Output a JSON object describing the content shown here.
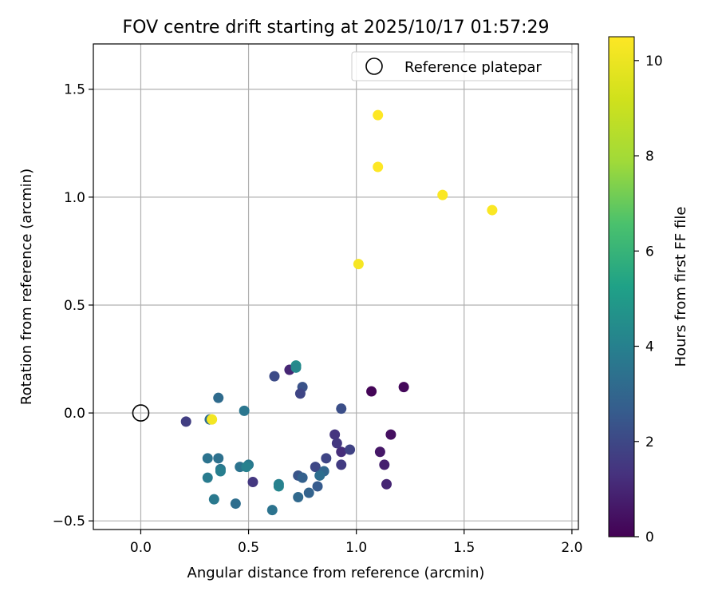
{
  "chart_data": {
    "type": "scatter",
    "title": "FOV centre drift starting at 2025/10/17 01:57:29",
    "xlabel": "Angular distance from reference (arcmin)",
    "ylabel": "Rotation from reference (arcmin)",
    "xlim": [
      -0.22,
      2.03
    ],
    "ylim": [
      -0.54,
      1.71
    ],
    "xticks": [
      0.0,
      0.5,
      1.0,
      1.5,
      2.0
    ],
    "xtick_labels": [
      "0.0",
      "0.5",
      "1.0",
      "1.5",
      "2.0"
    ],
    "yticks": [
      -0.5,
      0.0,
      0.5,
      1.0,
      1.5
    ],
    "ytick_labels": [
      "−0.5",
      "0.0",
      "0.5",
      "1.0",
      "1.5"
    ],
    "grid": true,
    "legend": {
      "position": "top-right",
      "entries": [
        "Reference platepar"
      ]
    },
    "colorbar": {
      "label": "Hours from first FF file",
      "range": [
        0,
        10.5
      ],
      "ticks": [
        0,
        2,
        4,
        6,
        8,
        10
      ],
      "tick_labels": [
        "0",
        "2",
        "4",
        "6",
        "8",
        "10"
      ],
      "colormap": "viridis"
    },
    "reference_point": {
      "x": 0.0,
      "y": 0.0,
      "label": "Reference platepar"
    },
    "series": [
      {
        "name": "FOV centre drift",
        "x": [
          1.07,
          1.22,
          1.16,
          1.11,
          1.13,
          1.14,
          0.93,
          0.9,
          0.91,
          0.93,
          0.69,
          0.97,
          0.86,
          0.93,
          0.81,
          0.75,
          0.52,
          0.21,
          0.74,
          0.73,
          0.62,
          0.82,
          0.85,
          0.78,
          0.73,
          0.75,
          0.83,
          0.72,
          0.36,
          0.48,
          0.32,
          0.31,
          0.36,
          0.37,
          0.46,
          0.5,
          0.31,
          0.37,
          0.49,
          0.64,
          0.34,
          0.44,
          0.61,
          0.64,
          0.72,
          0.33,
          1.1,
          1.1,
          1.4,
          1.63,
          1.01,
          0.33
        ],
        "y": [
          0.1,
          0.12,
          -0.1,
          -0.18,
          -0.24,
          -0.33,
          -0.18,
          -0.1,
          -0.14,
          -0.24,
          0.2,
          -0.17,
          -0.21,
          0.02,
          -0.25,
          0.12,
          -0.32,
          -0.04,
          0.09,
          -0.29,
          0.17,
          -0.34,
          -0.27,
          -0.37,
          -0.39,
          -0.3,
          -0.29,
          0.22,
          0.07,
          0.01,
          -0.03,
          -0.21,
          -0.21,
          -0.26,
          -0.25,
          -0.24,
          -0.3,
          -0.27,
          -0.25,
          -0.34,
          -0.4,
          -0.42,
          -0.45,
          -0.33,
          0.21,
          -0.03,
          1.38,
          1.14,
          1.01,
          0.94,
          0.69,
          -0.03
        ],
        "hours": [
          0.1,
          0.2,
          0.4,
          0.6,
          0.8,
          1.0,
          1.2,
          1.4,
          1.5,
          1.6,
          1.0,
          1.8,
          1.9,
          2.2,
          2.0,
          2.3,
          1.5,
          1.7,
          1.9,
          2.4,
          2.1,
          2.6,
          3.0,
          2.9,
          3.1,
          2.8,
          3.3,
          4.5,
          3.2,
          3.6,
          3.3,
          3.5,
          3.4,
          3.6,
          3.5,
          3.7,
          3.8,
          3.9,
          4.0,
          4.2,
          3.7,
          3.3,
          3.5,
          4.0,
          4.3,
          10.3,
          10.5,
          10.5,
          10.4,
          10.4,
          10.3,
          10.2
        ]
      }
    ]
  }
}
